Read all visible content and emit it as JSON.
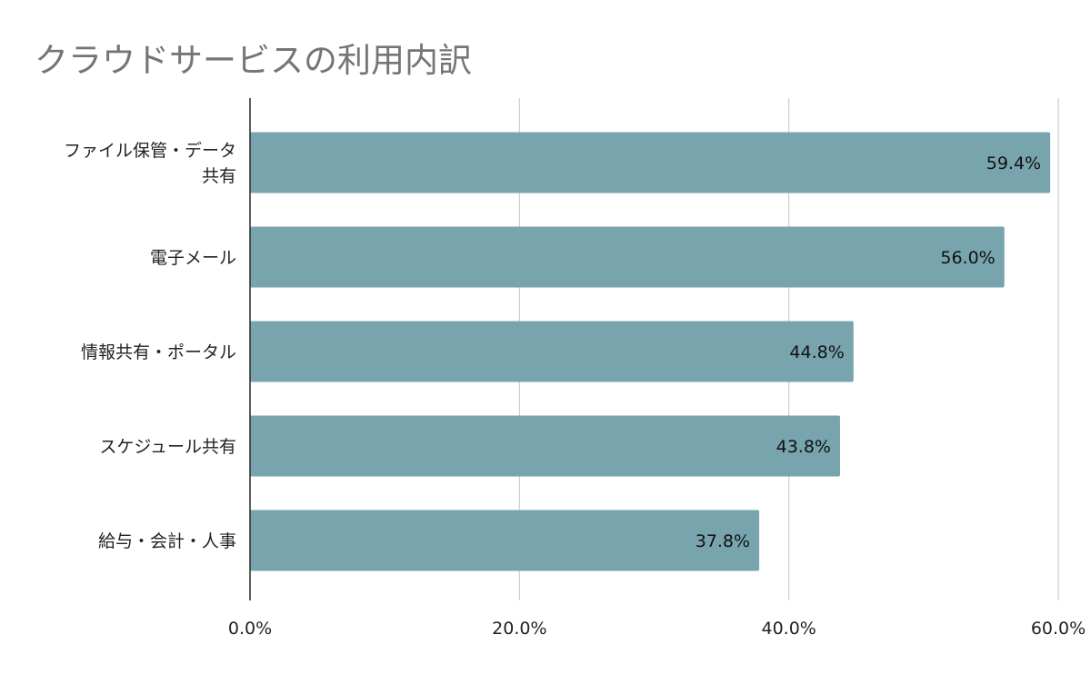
{
  "chart_data": {
    "type": "bar",
    "orientation": "horizontal",
    "title": "クラウドサービスの利用内訳",
    "categories": [
      "ファイル保管・データ共有",
      "電子メール",
      "情報共有・ポータル",
      "スケジュール共有",
      "給与・会計・人事"
    ],
    "category_label_lines": [
      [
        "ファイル保管・データ",
        "共有"
      ],
      [
        "電子メール"
      ],
      [
        "情報共有・ポータル"
      ],
      [
        "スケジュール共有"
      ],
      [
        "給与・会計・人事"
      ]
    ],
    "values": [
      59.4,
      56.0,
      44.8,
      43.8,
      37.8
    ],
    "data_labels": [
      "59.4%",
      "56.0%",
      "44.8%",
      "43.8%",
      "37.8%"
    ],
    "xlim": [
      0,
      60
    ],
    "ticks": [
      0,
      20,
      40,
      60
    ],
    "tick_labels": [
      "0.0%",
      "20.0%",
      "40.0%",
      "60.0%"
    ],
    "grid": true,
    "legend": "none",
    "bar_color": "#78a4ae",
    "xlabel": "",
    "ylabel": ""
  }
}
